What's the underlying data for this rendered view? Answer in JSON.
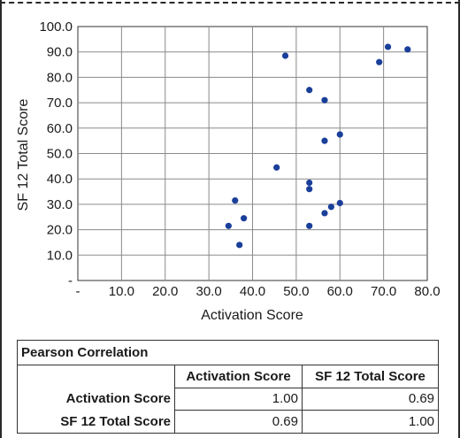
{
  "chart_data": {
    "type": "scatter",
    "xlabel": "Activation Score",
    "ylabel": "SF 12 Total Score",
    "xlim": [
      0,
      80
    ],
    "ylim": [
      0,
      100
    ],
    "x_ticks": [
      "-",
      "10.0",
      "20.0",
      "30.0",
      "40.0",
      "50.0",
      "60.0",
      "70.0",
      "80.0"
    ],
    "y_ticks": [
      "-",
      "10.0",
      "20.0",
      "30.0",
      "40.0",
      "50.0",
      "60.0",
      "70.0",
      "80.0",
      "90.0",
      "100.0"
    ],
    "grid": true,
    "marker_color": "#1a3f9a",
    "points": [
      {
        "x": 34.5,
        "y": 21.5
      },
      {
        "x": 36.0,
        "y": 31.5
      },
      {
        "x": 37.0,
        "y": 14.0
      },
      {
        "x": 38.0,
        "y": 24.5
      },
      {
        "x": 45.5,
        "y": 44.5
      },
      {
        "x": 47.5,
        "y": 88.5
      },
      {
        "x": 53.0,
        "y": 75.0
      },
      {
        "x": 53.0,
        "y": 38.5
      },
      {
        "x": 53.0,
        "y": 36.0
      },
      {
        "x": 53.0,
        "y": 21.5
      },
      {
        "x": 56.5,
        "y": 71.0
      },
      {
        "x": 56.5,
        "y": 55.0
      },
      {
        "x": 56.5,
        "y": 26.5
      },
      {
        "x": 58.0,
        "y": 29.0
      },
      {
        "x": 60.0,
        "y": 57.5
      },
      {
        "x": 60.0,
        "y": 30.5
      },
      {
        "x": 69.0,
        "y": 86.0
      },
      {
        "x": 71.0,
        "y": 92.0
      },
      {
        "x": 75.5,
        "y": 91.0
      }
    ]
  },
  "table": {
    "title": "Pearson Correlation",
    "columns": [
      "Activation Score",
      "SF 12 Total Score"
    ],
    "rows": [
      {
        "label": "Activation Score",
        "values": [
          "1.00",
          "0.69"
        ]
      },
      {
        "label": "SF 12 Total Score",
        "values": [
          "0.69",
          "1.00"
        ]
      }
    ]
  }
}
